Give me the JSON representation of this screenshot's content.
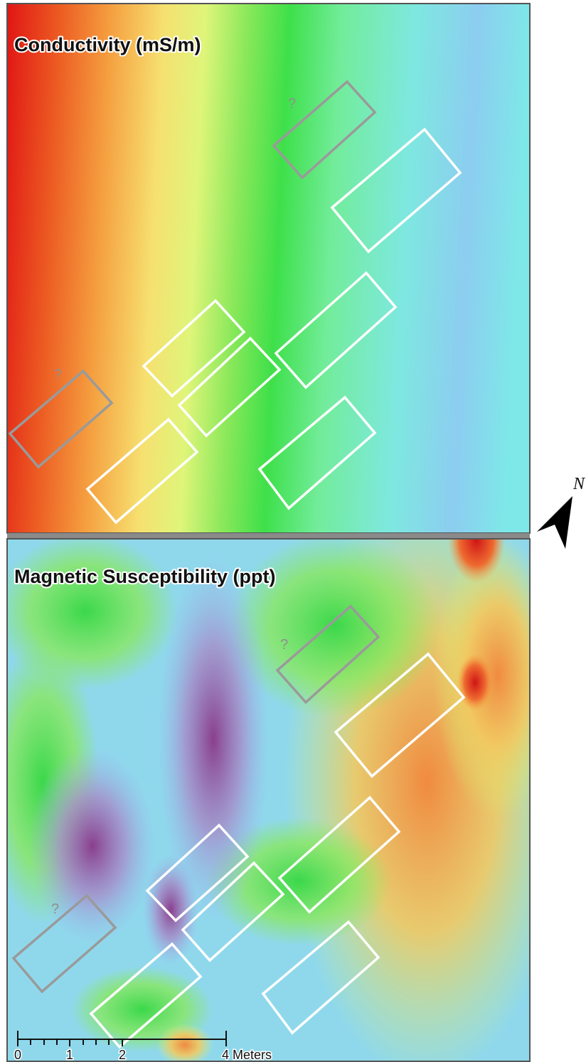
{
  "panels": [
    {
      "title": "Conductivity (mS/m)",
      "annotations": [
        "?",
        "?"
      ]
    },
    {
      "title": "Magnetic Susceptibility (ppt)",
      "annotations": [
        "?",
        "?"
      ]
    }
  ],
  "north_arrow": {
    "label": "N"
  },
  "scale_bar": {
    "labels": [
      "0",
      "1",
      "2",
      "4 Meters"
    ]
  }
}
